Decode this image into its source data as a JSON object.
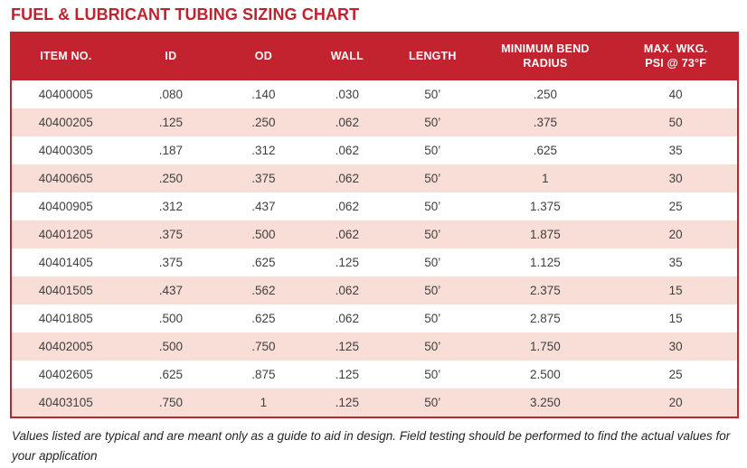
{
  "page": {
    "title": "FUEL & LUBRICANT TUBING SIZING CHART",
    "footnote": "Values listed are typical and are meant only as a guide to aid in design. Field testing should be performed to find the actual values for your application"
  },
  "colors": {
    "header_background": "#c2232e",
    "title_red": "#c0232e",
    "row_alt_pink": "#f9ded7",
    "row_white": "#ffffff",
    "table_border": "#bf2430",
    "body_text": "#404040",
    "header_text": "#ffffff"
  },
  "chart_data": {
    "type": "table",
    "title": "FUEL & LUBRICANT TUBING SIZING CHART",
    "columns": [
      "ITEM NO.",
      "ID",
      "OD",
      "WALL",
      "LENGTH",
      "MINIMUM BEND\nRADIUS",
      "MAX. WKG.\nPSI @ 73°F"
    ],
    "rows": [
      [
        "40400005",
        ".080",
        ".140",
        ".030",
        "50’",
        ".250",
        "40"
      ],
      [
        "40400205",
        ".125",
        ".250",
        ".062",
        "50’",
        ".375",
        "50"
      ],
      [
        "40400305",
        ".187",
        ".312",
        ".062",
        "50’",
        ".625",
        "35"
      ],
      [
        "40400605",
        ".250",
        ".375",
        ".062",
        "50’",
        "1",
        "30"
      ],
      [
        "40400905",
        ".312",
        ".437",
        ".062",
        "50’",
        "1.375",
        "25"
      ],
      [
        "40401205",
        ".375",
        ".500",
        ".062",
        "50’",
        "1.875",
        "20"
      ],
      [
        "40401405",
        ".375",
        ".625",
        ".125",
        "50’",
        "1.125",
        "35"
      ],
      [
        "40401505",
        ".437",
        ".562",
        ".062",
        "50’",
        "2.375",
        "15"
      ],
      [
        "40401805",
        ".500",
        ".625",
        ".062",
        "50’",
        "2.875",
        "15"
      ],
      [
        "40402005",
        ".500",
        ".750",
        ".125",
        "50’",
        "1.750",
        "30"
      ],
      [
        "40402605",
        ".625",
        ".875",
        ".125",
        "50’",
        "2.500",
        "25"
      ],
      [
        "40403105",
        ".750",
        "1",
        ".125",
        "50’",
        "3.250",
        "20"
      ]
    ],
    "layout": {
      "row_striping": "odd rows white, even rows light pink",
      "header_style": "solid red band with white bold text",
      "alignment": "all cells centered"
    }
  }
}
